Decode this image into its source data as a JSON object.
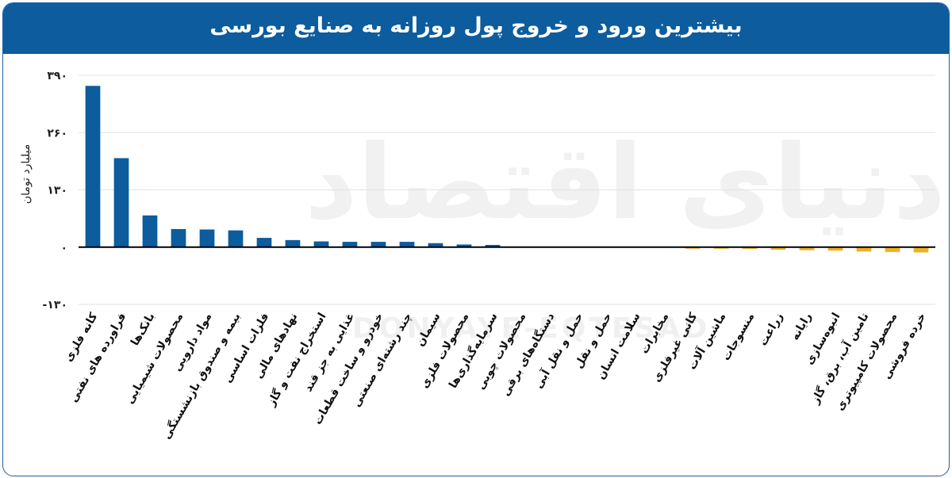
{
  "header": {
    "title": "بیشترین ورود و خروج پول روزانه به صنایع بورسی"
  },
  "watermark": {
    "text": "دنیای اقتصاد",
    "latin": "DONYAYE-EQTESAD"
  },
  "colors": {
    "header": "#0c5c9e",
    "positive": "#0c5c9e",
    "negative": "#f0b020",
    "axis": "#000000",
    "grid": "#e2e2e2"
  },
  "chart_data": {
    "type": "bar",
    "title": "بیشترین ورود و خروج پول روزانه به صنایع بورسی",
    "ylabel": "میلیارد تومان",
    "ylim": [
      -130,
      390
    ],
    "yticks": [
      -130,
      0,
      130,
      260,
      390
    ],
    "ytick_labels": [
      "-۱۳۰",
      "۰",
      "۱۳۰",
      "۲۶۰",
      "۳۹۰"
    ],
    "grid": true,
    "categories": [
      "کانه فلزی",
      "فراورده های نفتی",
      "بانک‌ها",
      "محصولات شیمیایی",
      "مواد دارویی",
      "بیمه و صندوق بازنشستگی",
      "فلزات اساسی",
      "نهادهای مالی",
      "استخراج نفت و گاز",
      "غذایی به جز قند",
      "خودرو و ساخت قطعات",
      "چند رشته‌ای صنعتی",
      "سیمان",
      "محصولات فلزی",
      "سرمایه‌گذاری‌ها",
      "محصولات چوبی",
      "دستگاه‌های برقی",
      "حمل و نقل آبی",
      "حمل و نقل",
      "سلامت انسان",
      "مخابرات",
      "کانی غیرفلزی",
      "ماشین آلات",
      "منسوجات",
      "زراعت",
      "رایانه",
      "انبوه‌سازی",
      "تامین آب، برق، گاز",
      "محصولات کامپیوتری",
      "خرده فروشی"
    ],
    "values": [
      366,
      202,
      72,
      41,
      40,
      38,
      21,
      16,
      13,
      12,
      12,
      12,
      9,
      6,
      5,
      0,
      0,
      0,
      0,
      0,
      0,
      -2,
      -3,
      -4,
      -6,
      -7,
      -8,
      -10,
      -11,
      -12
    ]
  }
}
